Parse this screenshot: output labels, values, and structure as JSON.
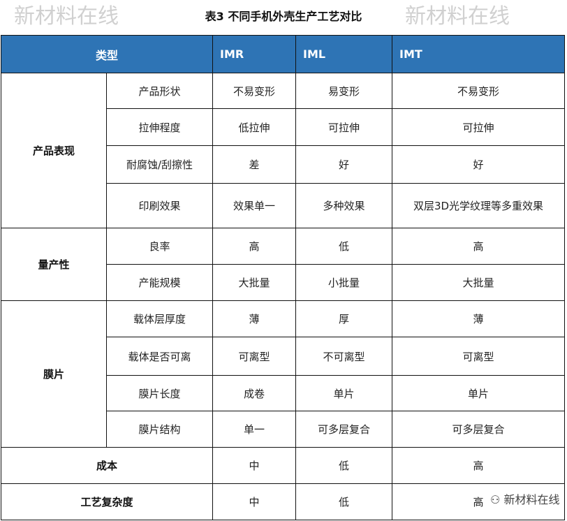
{
  "title": "表3   不同手机外壳生产工艺对比",
  "header": {
    "type": "类型",
    "cols": [
      "IMR",
      "IML",
      "IMT"
    ]
  },
  "groups": [
    {
      "name": "产品表现",
      "rows": [
        {
          "item": "产品形状",
          "v": [
            "不易变形",
            "易变形",
            "不易变形"
          ]
        },
        {
          "item": "拉伸程度",
          "v": [
            "低拉伸",
            "可拉伸",
            "可拉伸"
          ]
        },
        {
          "item": "耐腐蚀/刮擦性",
          "v": [
            "差",
            "好",
            "好"
          ]
        },
        {
          "item": "印刷效果",
          "v": [
            "效果单一",
            "多种效果",
            "双层3D光学纹理等多重效果"
          ]
        }
      ]
    },
    {
      "name": "量产性",
      "rows": [
        {
          "item": "良率",
          "v": [
            "高",
            "低",
            "高"
          ]
        },
        {
          "item": "产能规模",
          "v": [
            "大批量",
            "小批量",
            "大批量"
          ]
        }
      ]
    },
    {
      "name": "膜片",
      "rows": [
        {
          "item": "载体层厚度",
          "v": [
            "薄",
            "厚",
            "薄"
          ]
        },
        {
          "item": "载体是否可离",
          "v": [
            "可离型",
            "不可离型",
            "可离型"
          ]
        },
        {
          "item": "膜片长度",
          "v": [
            "成卷",
            "单片",
            "单片"
          ]
        },
        {
          "item": "膜片结构",
          "v": [
            "单一",
            "可多层复合",
            "可多层复合"
          ]
        }
      ]
    }
  ],
  "single_rows": [
    {
      "name": "成本",
      "v": [
        "中",
        "低",
        "高"
      ]
    },
    {
      "name": "工艺复杂度",
      "v": [
        "中",
        "低",
        "高"
      ]
    }
  ],
  "watermark": "新材料在线",
  "logo_text": "新材料在线",
  "header_color": "#2e74b5"
}
